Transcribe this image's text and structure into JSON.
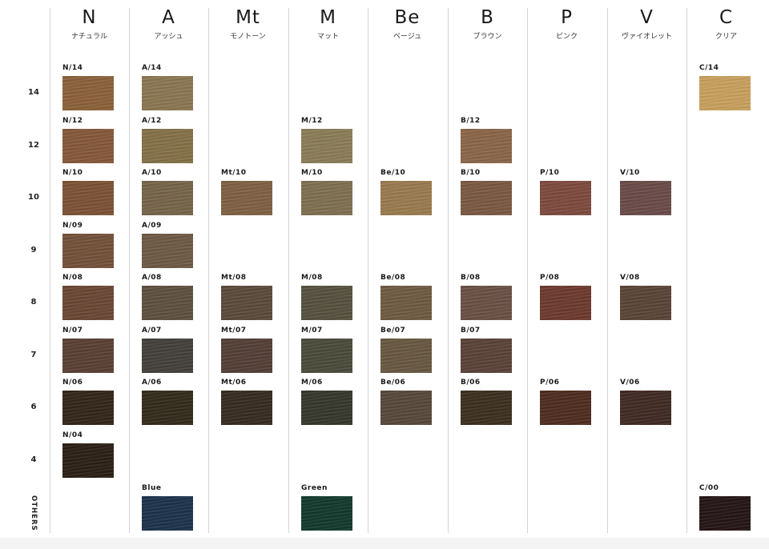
{
  "rows": [
    {
      "key": "14",
      "label": "14"
    },
    {
      "key": "12",
      "label": "12"
    },
    {
      "key": "10",
      "label": "10"
    },
    {
      "key": "9",
      "label": "9"
    },
    {
      "key": "8",
      "label": "8"
    },
    {
      "key": "7",
      "label": "7"
    },
    {
      "key": "6",
      "label": "6"
    },
    {
      "key": "4",
      "label": "4"
    },
    {
      "key": "others",
      "label": "OTHERS"
    }
  ],
  "columns": [
    {
      "code": "N",
      "name": "ナチュラル",
      "swatches": [
        {
          "row": "14",
          "label": "N/14",
          "color": "#8c6139"
        },
        {
          "row": "12",
          "label": "N/12",
          "color": "#85583a"
        },
        {
          "row": "10",
          "label": "N/10",
          "color": "#7c5235"
        },
        {
          "row": "9",
          "label": "N/09",
          "color": "#74513a"
        },
        {
          "row": "8",
          "label": "N/08",
          "color": "#6a4734"
        },
        {
          "row": "7",
          "label": "N/07",
          "color": "#5a3f33"
        },
        {
          "row": "6",
          "label": "N/06",
          "color": "#322518"
        },
        {
          "row": "4",
          "label": "N/04",
          "color": "#2b1f14"
        }
      ]
    },
    {
      "code": "A",
      "name": "アッシュ",
      "swatches": [
        {
          "row": "14",
          "label": "A/14",
          "color": "#8b7752"
        },
        {
          "row": "12",
          "label": "A/12",
          "color": "#857148"
        },
        {
          "row": "10",
          "label": "A/10",
          "color": "#76654a"
        },
        {
          "row": "9",
          "label": "A/09",
          "color": "#6d5a45"
        },
        {
          "row": "8",
          "label": "A/08",
          "color": "#5e503f"
        },
        {
          "row": "7",
          "label": "A/07",
          "color": "#43403b"
        },
        {
          "row": "6",
          "label": "A/06",
          "color": "#332a1b"
        },
        {
          "row": "others",
          "label": "Blue",
          "color": "#1c334b"
        }
      ]
    },
    {
      "code": "Mt",
      "name": "モノトーン",
      "swatches": [
        {
          "row": "10",
          "label": "Mt/10",
          "color": "#7f6144"
        },
        {
          "row": "8",
          "label": "Mt/08",
          "color": "#5a4a3b"
        },
        {
          "row": "7",
          "label": "Mt/07",
          "color": "#533f36"
        },
        {
          "row": "6",
          "label": "Mt/06",
          "color": "#362b1f"
        }
      ]
    },
    {
      "code": "M",
      "name": "マット",
      "swatches": [
        {
          "row": "12",
          "label": "M/12",
          "color": "#8b7d58"
        },
        {
          "row": "10",
          "label": "M/10",
          "color": "#7f7051"
        },
        {
          "row": "8",
          "label": "M/08",
          "color": "#56513f"
        },
        {
          "row": "7",
          "label": "M/07",
          "color": "#4a4b3a"
        },
        {
          "row": "6",
          "label": "M/06",
          "color": "#36372b"
        },
        {
          "row": "others",
          "label": "Green",
          "color": "#123a2c"
        }
      ]
    },
    {
      "code": "Be",
      "name": "ベージュ",
      "swatches": [
        {
          "row": "10",
          "label": "Be/10",
          "color": "#9a7b4f"
        },
        {
          "row": "8",
          "label": "Be/08",
          "color": "#6e5b41"
        },
        {
          "row": "7",
          "label": "Be/07",
          "color": "#685841"
        },
        {
          "row": "6",
          "label": "Be/06",
          "color": "#57483a"
        }
      ]
    },
    {
      "code": "B",
      "name": "ブラウン",
      "swatches": [
        {
          "row": "12",
          "label": "B/12",
          "color": "#8b6649"
        },
        {
          "row": "10",
          "label": "B/10",
          "color": "#7a5943"
        },
        {
          "row": "8",
          "label": "B/08",
          "color": "#6a5045"
        },
        {
          "row": "7",
          "label": "B/07",
          "color": "#5a4238"
        },
        {
          "row": "6",
          "label": "B/06",
          "color": "#3b2f1f"
        }
      ]
    },
    {
      "code": "P",
      "name": "ピンク",
      "swatches": [
        {
          "row": "10",
          "label": "P/10",
          "color": "#7e4a3e"
        },
        {
          "row": "8",
          "label": "P/08",
          "color": "#6c3a2e"
        },
        {
          "row": "6",
          "label": "P/06",
          "color": "#4e2c1f"
        }
      ]
    },
    {
      "code": "V",
      "name": "ヴァイオレット",
      "swatches": [
        {
          "row": "10",
          "label": "V/10",
          "color": "#6a4b48"
        },
        {
          "row": "8",
          "label": "V/08",
          "color": "#5a4436"
        },
        {
          "row": "6",
          "label": "V/06",
          "color": "#3f2a23"
        }
      ]
    },
    {
      "code": "C",
      "name": "クリア",
      "swatches": [
        {
          "row": "14",
          "label": "C/14",
          "color": "#c9a15e"
        },
        {
          "row": "others",
          "label": "C/00",
          "color": "#241416"
        }
      ]
    }
  ]
}
